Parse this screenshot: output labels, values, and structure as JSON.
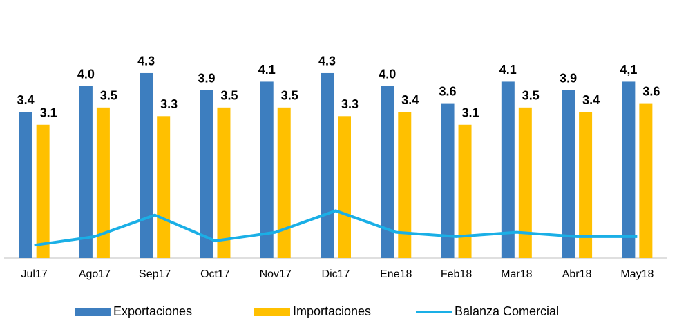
{
  "chart_data": {
    "type": "bar_line",
    "categories": [
      "Jul17",
      "Ago17",
      "Sep17",
      "Oct17",
      "Nov17",
      "Dic17",
      "Ene18",
      "Feb18",
      "Mar18",
      "Abr18",
      "May18"
    ],
    "series": [
      {
        "name": "Exportaciones",
        "color": "#3d7ebf",
        "type": "bar",
        "values": [
          3.4,
          4.0,
          4.3,
          3.9,
          4.1,
          4.3,
          4.0,
          3.6,
          4.1,
          3.9,
          4.1
        ],
        "value_labels": [
          "3.4",
          "4.0",
          "4.3",
          "3.9",
          "4.1",
          "4.3",
          "4.0",
          "3.6",
          "4.1",
          "3.9",
          "4,1"
        ]
      },
      {
        "name": "Importaciones",
        "color": "#ffc000",
        "type": "bar",
        "values": [
          3.1,
          3.5,
          3.3,
          3.5,
          3.5,
          3.3,
          3.4,
          3.1,
          3.5,
          3.4,
          3.6
        ]
      },
      {
        "name": "Balanza Comercial",
        "color": "#1aafe6",
        "type": "line",
        "values": [
          0.3,
          0.5,
          1.0,
          0.4,
          0.6,
          1.1,
          0.6,
          0.5,
          0.6,
          0.5,
          0.5
        ]
      }
    ],
    "ylim": [
      0,
      6
    ]
  }
}
